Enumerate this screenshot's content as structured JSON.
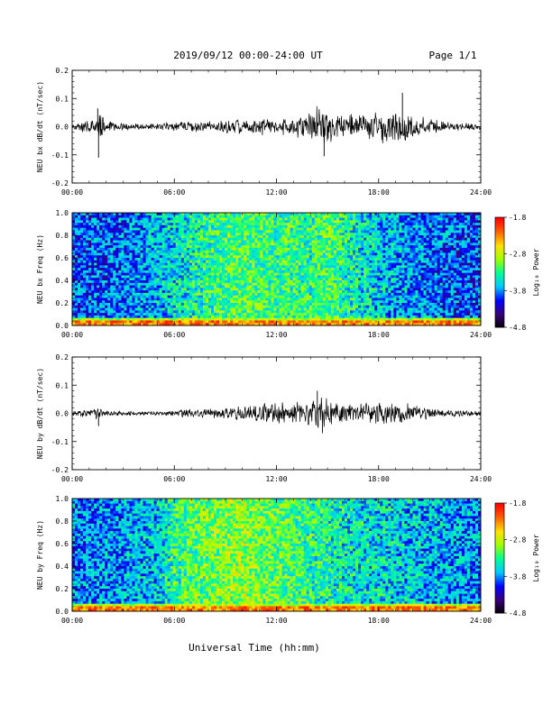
{
  "header": {
    "date_range": "2019/09/12  00:00-24:00 UT",
    "page": "Page 1/1"
  },
  "x_axis": {
    "ticks": [
      "00:00",
      "06:00",
      "12:00",
      "18:00",
      "24:00"
    ],
    "label": "Universal Time (hh:mm)"
  },
  "colorbar": {
    "ticks": [
      "-1.8",
      "-2.8",
      "-3.8",
      "-4.8"
    ],
    "label": "Log₁₀ Power",
    "colors": [
      "#000000",
      "#3a0078",
      "#0000ff",
      "#00c8ff",
      "#00ff96",
      "#a0ff00",
      "#ffe000",
      "#ff6000",
      "#ff0000"
    ]
  },
  "chart_data": [
    {
      "type": "line",
      "ylabel": "NEU bx dB/dt (nT/sec)",
      "y_ticks": [
        "0.2",
        "0.1",
        "0.0",
        "-0.1",
        "-0.2"
      ],
      "ylim": [
        -0.2,
        0.2
      ],
      "xlim_hours": [
        0,
        24
      ],
      "envelope": {
        "hours": [
          0,
          1,
          1.6,
          2,
          3,
          4,
          5,
          6,
          7,
          8,
          9,
          10,
          11,
          12,
          13,
          14,
          14.5,
          15,
          15.5,
          16,
          17,
          18,
          19,
          20,
          21,
          22,
          23,
          24
        ],
        "amplitude": [
          0.012,
          0.025,
          0.06,
          0.02,
          0.015,
          0.01,
          0.012,
          0.018,
          0.022,
          0.02,
          0.025,
          0.03,
          0.035,
          0.025,
          0.04,
          0.055,
          0.09,
          0.07,
          0.06,
          0.045,
          0.05,
          0.06,
          0.07,
          0.05,
          0.03,
          0.02,
          0.015,
          0.012
        ]
      },
      "spikes": [
        {
          "hour": 1.55,
          "value": -0.11
        },
        {
          "hour": 1.5,
          "value": 0.065
        },
        {
          "hour": 14.8,
          "value": -0.105
        },
        {
          "hour": 19.4,
          "value": 0.12
        }
      ]
    },
    {
      "type": "heatmap",
      "ylabel": "NEU bx Freq (Hz)",
      "y_ticks": [
        "1.0",
        "0.8",
        "0.6",
        "0.4",
        "0.2",
        "0.0"
      ],
      "ylim": [
        0,
        1.0
      ],
      "xlim_hours": [
        0,
        24
      ],
      "zlim": [
        -4.8,
        -1.8
      ],
      "activity": {
        "hours": [
          0,
          3,
          6,
          8,
          10,
          12,
          14,
          15,
          16,
          18,
          20,
          22,
          24
        ],
        "level": [
          0.28,
          0.32,
          0.42,
          0.5,
          0.55,
          0.52,
          0.5,
          0.55,
          0.48,
          0.4,
          0.35,
          0.3,
          0.28
        ]
      }
    },
    {
      "type": "line",
      "ylabel": "NEU by dB/dt (nT/sec)",
      "y_ticks": [
        "0.2",
        "0.1",
        "0.0",
        "-0.1",
        "-0.2"
      ],
      "ylim": [
        -0.2,
        0.2
      ],
      "xlim_hours": [
        0,
        24
      ],
      "envelope": {
        "hours": [
          0,
          1,
          1.5,
          2,
          3,
          4,
          5,
          6,
          7,
          8,
          9,
          10,
          11,
          12,
          13,
          14,
          14.5,
          15,
          16,
          17,
          18,
          19,
          20,
          21,
          22,
          23,
          24
        ],
        "amplitude": [
          0.01,
          0.015,
          0.025,
          0.012,
          0.01,
          0.008,
          0.008,
          0.012,
          0.02,
          0.02,
          0.025,
          0.03,
          0.04,
          0.05,
          0.04,
          0.05,
          0.065,
          0.055,
          0.035,
          0.04,
          0.045,
          0.05,
          0.035,
          0.02,
          0.015,
          0.012,
          0.01
        ]
      },
      "spikes": [
        {
          "hour": 1.55,
          "value": -0.045
        },
        {
          "hour": 14.7,
          "value": -0.07
        },
        {
          "hour": 14.4,
          "value": 0.08
        }
      ]
    },
    {
      "type": "heatmap",
      "ylabel": "NEU by Freq (Hz)",
      "y_ticks": [
        "1.0",
        "0.8",
        "0.6",
        "0.4",
        "0.2",
        "0.0"
      ],
      "ylim": [
        0,
        1.0
      ],
      "xlim_hours": [
        0,
        24
      ],
      "zlim": [
        -4.8,
        -1.8
      ],
      "activity": {
        "hours": [
          0,
          3,
          5,
          6,
          8,
          10,
          12,
          14,
          16,
          18,
          20,
          22,
          24
        ],
        "level": [
          0.32,
          0.36,
          0.4,
          0.5,
          0.58,
          0.62,
          0.56,
          0.5,
          0.45,
          0.42,
          0.4,
          0.36,
          0.34
        ]
      }
    }
  ]
}
